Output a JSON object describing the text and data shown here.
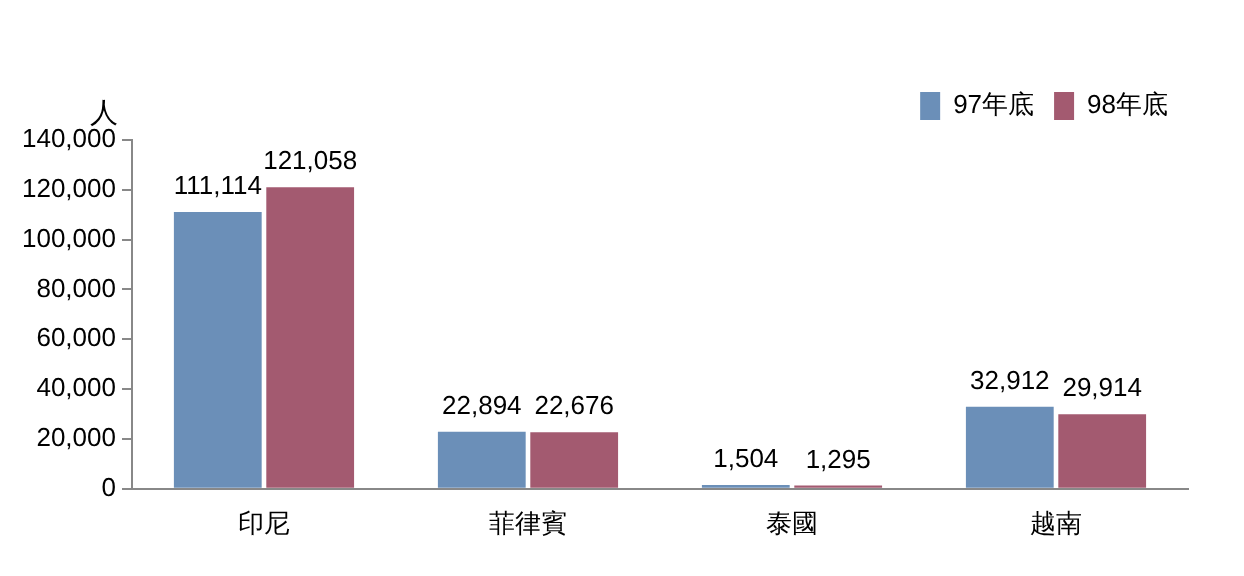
{
  "chart_data": {
    "type": "bar",
    "ylabel": "人",
    "categories": [
      "印尼",
      "菲律賓",
      "泰國",
      "越南"
    ],
    "series": [
      {
        "name": "97年底",
        "color": "#6b8fb8",
        "values": [
          111114,
          22894,
          1504,
          32912
        ],
        "value_labels": [
          "111,114",
          "22,894",
          "1,504",
          "32,912"
        ]
      },
      {
        "name": "98年底",
        "color": "#a35a70",
        "values": [
          121058,
          22676,
          1295,
          29914
        ],
        "value_labels": [
          "121,058",
          "22,676",
          "1,295",
          "29,914"
        ]
      }
    ],
    "ylim": [
      0,
      140000
    ],
    "yticks": [
      0,
      {
        "value": 20000,
        "label": "20,000"
      },
      {
        "value": 40000,
        "label": "40,000"
      },
      {
        "value": 60000,
        "label": "60,000"
      },
      {
        "value": 80000,
        "label": "80,000"
      },
      {
        "value": 100000,
        "label": "100,000"
      },
      {
        "value": 120000,
        "label": "120,000"
      },
      {
        "value": 140000,
        "label": "140,000"
      }
    ],
    "legend": "top right",
    "grid": false
  }
}
